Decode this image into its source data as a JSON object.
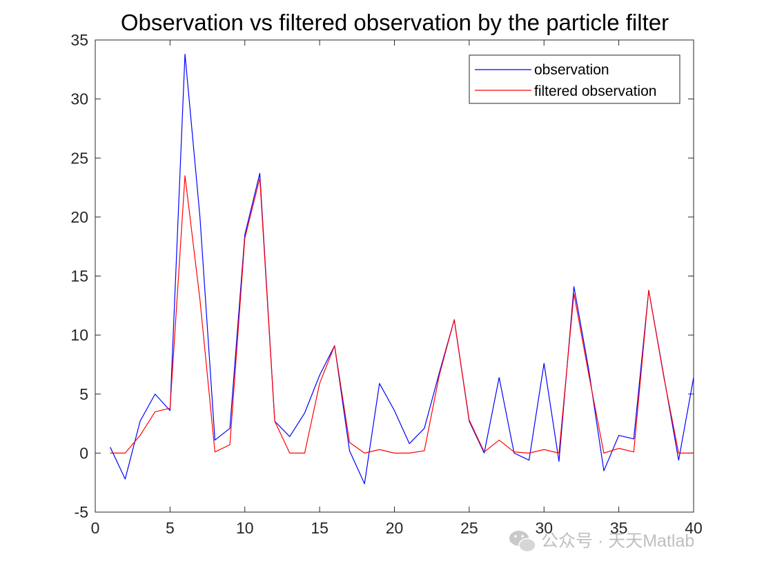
{
  "chart_data": {
    "type": "line",
    "title": "Observation vs filtered observation by the particle filter",
    "xlabel": "",
    "ylabel": "",
    "xlim": [
      0,
      40
    ],
    "ylim": [
      -5,
      35
    ],
    "xticks": [
      0,
      5,
      10,
      15,
      20,
      25,
      30,
      35,
      40
    ],
    "yticks": [
      -5,
      0,
      5,
      10,
      15,
      20,
      25,
      30,
      35
    ],
    "grid": false,
    "legend_position": "top-right",
    "x": [
      1,
      2,
      3,
      4,
      5,
      6,
      7,
      8,
      9,
      10,
      11,
      12,
      13,
      14,
      15,
      16,
      17,
      18,
      19,
      20,
      21,
      22,
      23,
      24,
      25,
      26,
      27,
      28,
      29,
      30,
      31,
      32,
      33,
      34,
      35,
      36,
      37,
      38,
      39,
      40
    ],
    "series": [
      {
        "name": "observation",
        "color": "#0000ff",
        "values": [
          0.5,
          -2.2,
          2.7,
          5.0,
          3.6,
          33.8,
          20.0,
          1.1,
          2.1,
          18.5,
          23.7,
          2.7,
          1.4,
          3.4,
          6.6,
          9.1,
          0.2,
          -2.6,
          5.9,
          3.6,
          0.8,
          2.1,
          6.8,
          11.3,
          2.7,
          0.0,
          6.4,
          0.0,
          -0.6,
          7.6,
          -0.7,
          14.1,
          7.0,
          -1.5,
          1.5,
          1.2,
          13.8,
          6.6,
          -0.6,
          6.4
        ]
      },
      {
        "name": "filtered observation",
        "color": "#ff0000",
        "values": [
          0.0,
          0.0,
          1.5,
          3.5,
          3.8,
          23.5,
          13.0,
          0.1,
          0.7,
          18.2,
          23.3,
          2.7,
          0.0,
          0.0,
          5.9,
          9.1,
          0.9,
          0.0,
          0.3,
          0.0,
          0.0,
          0.2,
          6.6,
          11.3,
          2.8,
          0.1,
          1.1,
          0.1,
          0.0,
          0.3,
          0.0,
          13.5,
          6.6,
          0.0,
          0.4,
          0.1,
          13.8,
          6.5,
          0.0,
          0.0
        ]
      }
    ]
  },
  "watermark": {
    "icon": "wechat-icon",
    "text": "公众号 · 天天Matlab"
  }
}
